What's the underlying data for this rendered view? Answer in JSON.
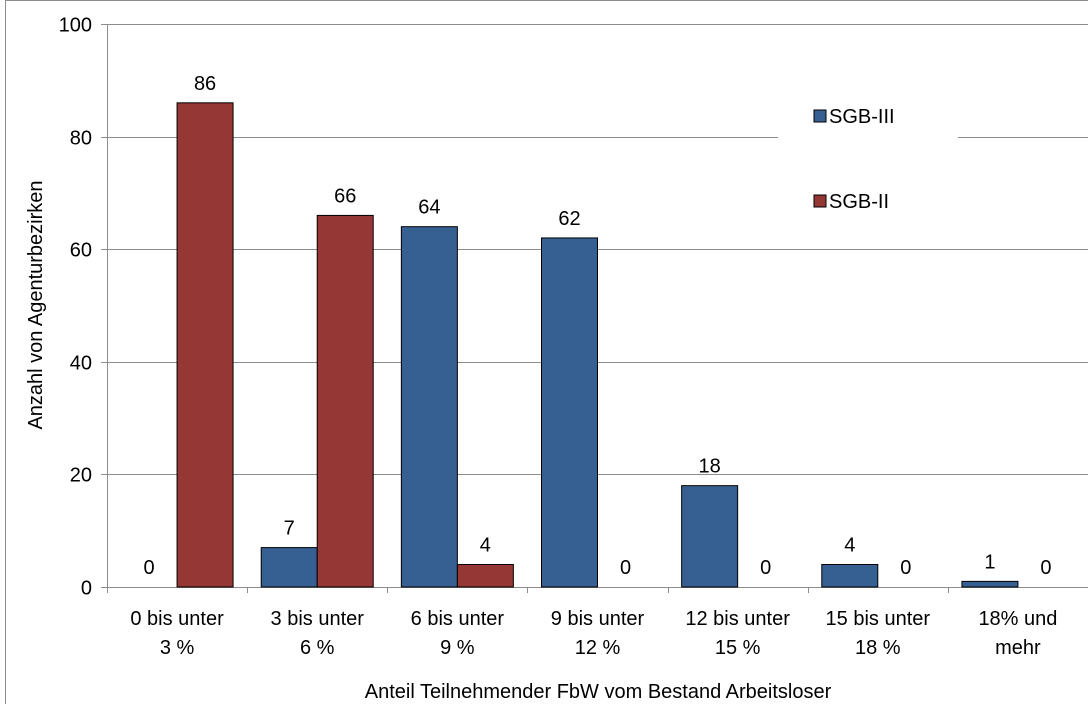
{
  "chart_data": {
    "type": "bar",
    "title": "",
    "xlabel": "Anteil Teilnehmender FbW vom Bestand Arbeitsloser",
    "ylabel": "Anzahl von Agenturbezirken",
    "ylim": [
      0,
      100
    ],
    "yticks": [
      0,
      20,
      40,
      60,
      80,
      100
    ],
    "grid": true,
    "legend_position": "right",
    "categories": [
      [
        "0 bis unter",
        "3 %"
      ],
      [
        "3 bis unter",
        "6 %"
      ],
      [
        "6 bis unter",
        "9 %"
      ],
      [
        "9 bis unter",
        "12 %"
      ],
      [
        "12 bis unter",
        "15 %"
      ],
      [
        "15 bis unter",
        "18 %"
      ],
      [
        "18% und",
        "mehr"
      ]
    ],
    "series": [
      {
        "name": "SGB-III",
        "color": "#376092",
        "values": [
          0,
          7,
          64,
          62,
          18,
          4,
          1
        ]
      },
      {
        "name": "SGB-II",
        "color": "#953735",
        "values": [
          86,
          66,
          4,
          0,
          0,
          0,
          0
        ]
      }
    ]
  }
}
